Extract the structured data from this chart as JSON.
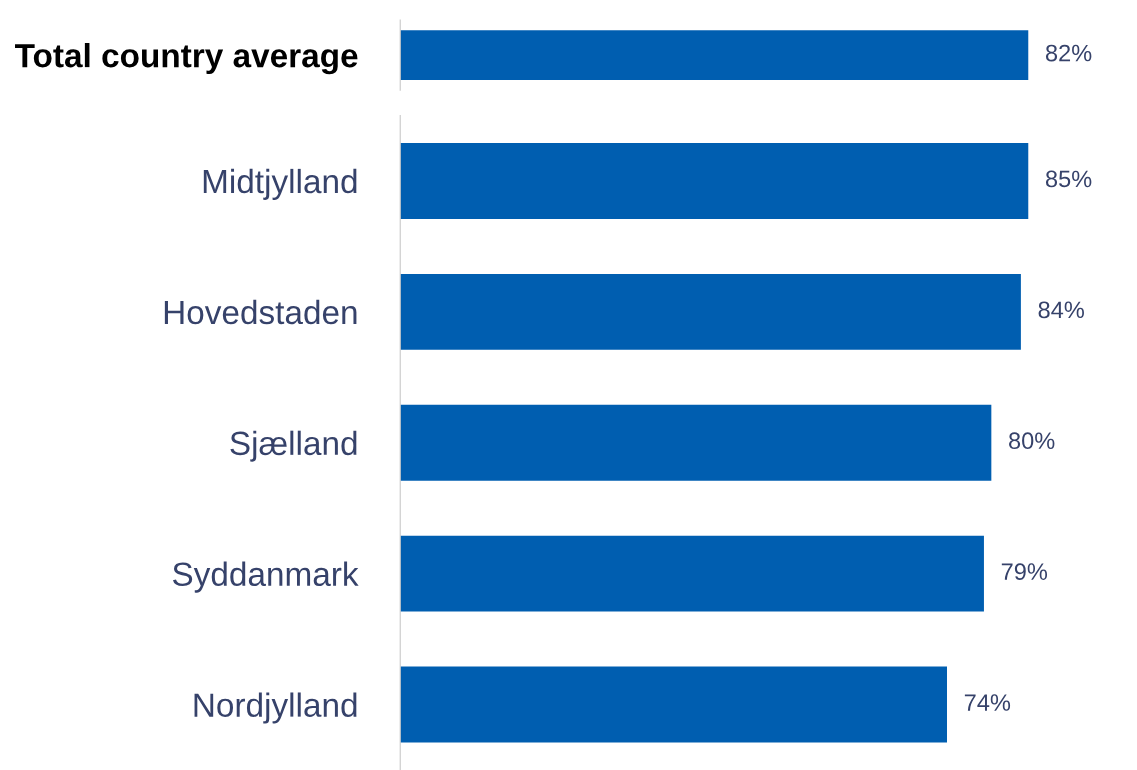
{
  "chart_data": [
    {
      "type": "bar",
      "orientation": "horizontal",
      "categories": [
        "Total country average"
      ],
      "values": [
        82
      ],
      "value_labels": [
        "82%"
      ],
      "color": "#005eb0",
      "tick_labels": "y",
      "grid": false,
      "legend": false
    },
    {
      "type": "bar",
      "orientation": "horizontal",
      "categories": [
        "Midtjylland",
        "Hovedstaden",
        "Sjælland",
        "Syddanmark",
        "Nordjylland"
      ],
      "values": [
        85,
        84,
        80,
        79,
        74
      ],
      "value_labels": [
        "85%",
        "84%",
        "80%",
        "79%",
        "74%"
      ],
      "color": "#005eb0",
      "tick_labels": "y",
      "grid": false,
      "legend": false
    }
  ]
}
